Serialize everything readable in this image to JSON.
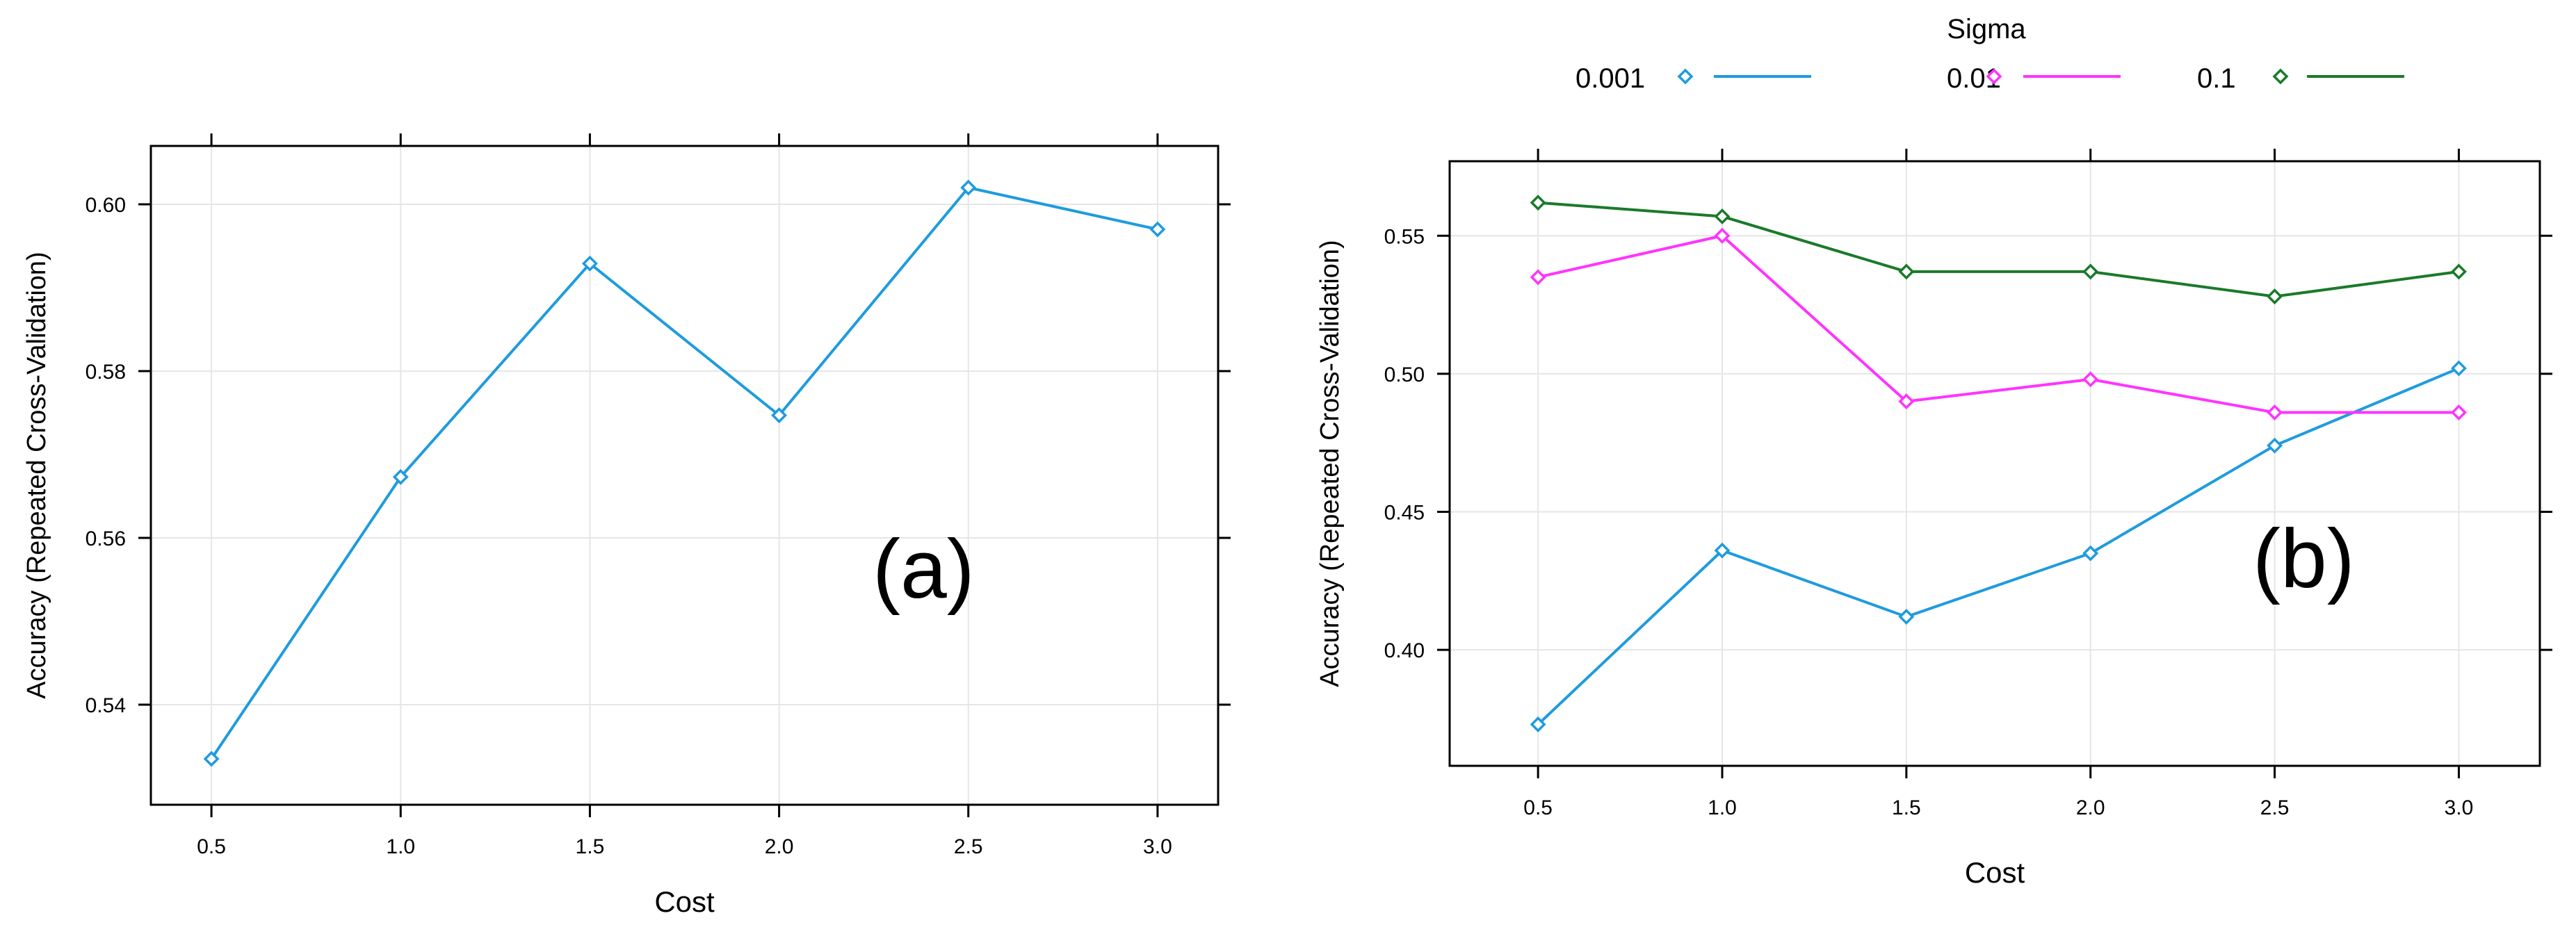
{
  "chart_data": [
    {
      "id": "a",
      "type": "line",
      "panel_label": "(a)",
      "title": "",
      "xlabel": "Cost",
      "ylabel": "Accuracy (Repeated Cross-Validation)",
      "xlim": [
        0.34,
        3.16
      ],
      "ylim": [
        0.528,
        0.607
      ],
      "x_ticks": [
        0.5,
        1.0,
        1.5,
        2.0,
        2.5,
        3.0
      ],
      "x_tick_labels": [
        "0.5",
        "1.0",
        "1.5",
        "2.0",
        "2.5",
        "3.0"
      ],
      "y_ticks": [
        0.54,
        0.56,
        0.58,
        0.6
      ],
      "y_tick_labels": [
        "0.54",
        "0.56",
        "0.58",
        "0.60"
      ],
      "grid": true,
      "series": [
        {
          "name": "",
          "color": "#1f9bde",
          "x": [
            0.5,
            1.0,
            1.5,
            2.0,
            2.5,
            3.0
          ],
          "values": [
            0.5335,
            0.5673,
            0.5929,
            0.5747,
            0.602,
            0.597
          ]
        }
      ]
    },
    {
      "id": "b",
      "type": "line",
      "panel_label": "(b)",
      "title": "",
      "xlabel": "Cost",
      "ylabel": "Accuracy (Repeated Cross-Validation)",
      "legend_title": "Sigma",
      "legend_position": "top",
      "xlim": [
        0.26,
        3.22
      ],
      "ylim": [
        0.358,
        0.577
      ],
      "x_ticks": [
        0.5,
        1.0,
        1.5,
        2.0,
        2.5,
        3.0
      ],
      "x_tick_labels": [
        "0.5",
        "1.0",
        "1.5",
        "2.0",
        "2.5",
        "3.0"
      ],
      "y_ticks": [
        0.4,
        0.45,
        0.5,
        0.55
      ],
      "y_tick_labels": [
        "0.40",
        "0.45",
        "0.50",
        "0.55"
      ],
      "grid": true,
      "series": [
        {
          "name": "0.001",
          "color": "#1f9bde",
          "x": [
            0.5,
            1.0,
            1.5,
            2.0,
            2.5,
            3.0
          ],
          "values": [
            0.373,
            0.436,
            0.412,
            0.435,
            0.474,
            0.502
          ]
        },
        {
          "name": "0.01",
          "color": "#ff33ff",
          "x": [
            0.5,
            1.0,
            1.5,
            2.0,
            2.5,
            3.0
          ],
          "values": [
            0.535,
            0.55,
            0.49,
            0.498,
            0.486,
            0.486
          ]
        },
        {
          "name": "0.1",
          "color": "#1a7a2a",
          "x": [
            0.5,
            1.0,
            1.5,
            2.0,
            2.5,
            3.0
          ],
          "values": [
            0.562,
            0.557,
            0.537,
            0.537,
            0.528,
            0.537
          ]
        }
      ]
    }
  ]
}
